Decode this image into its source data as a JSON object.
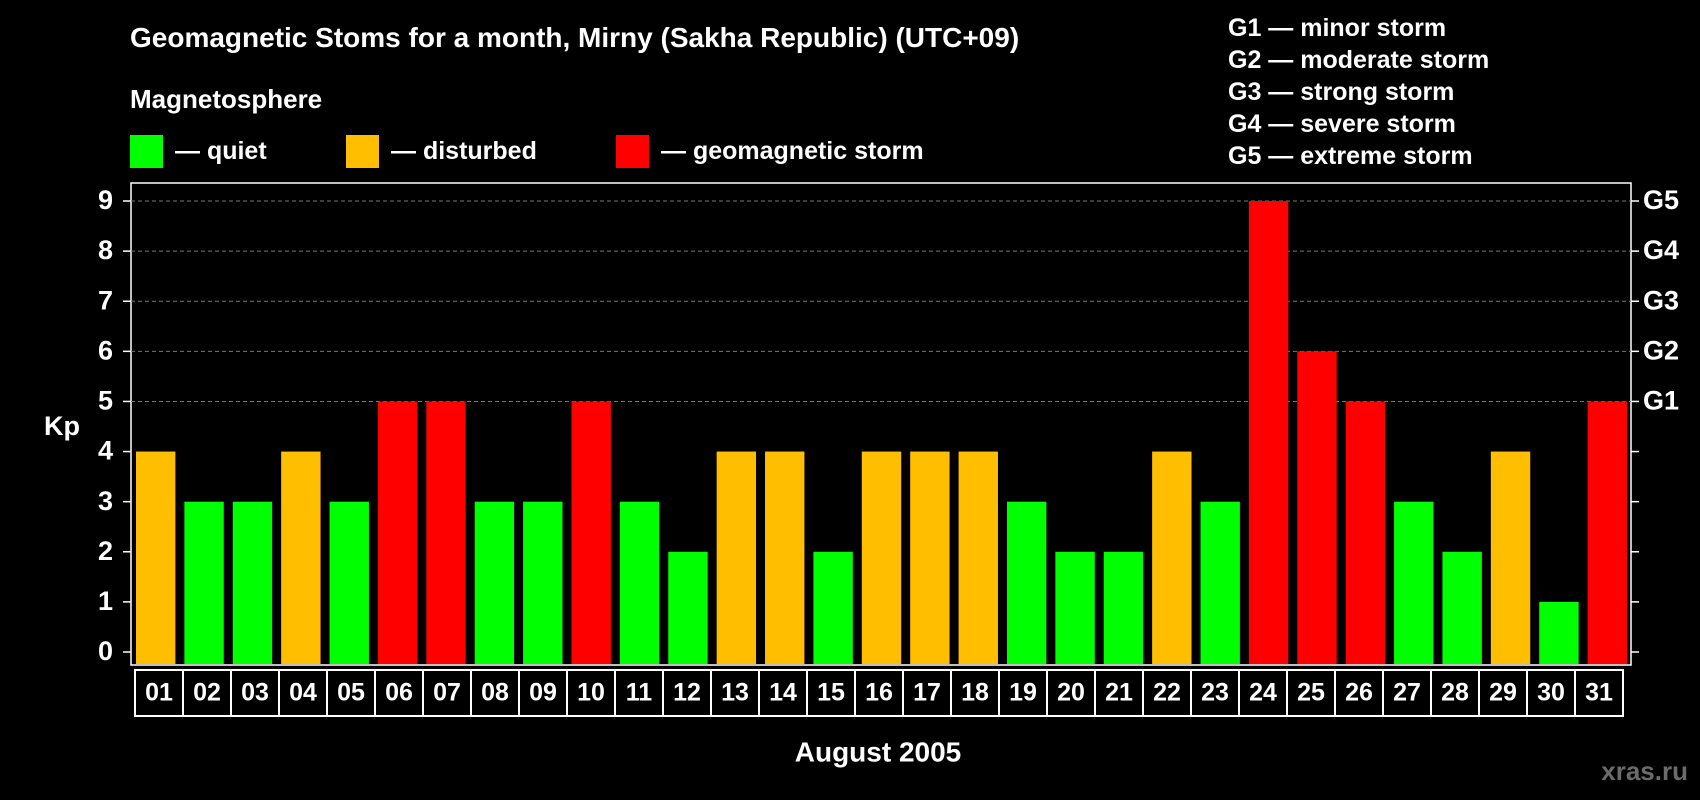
{
  "title": "Geomagnetic Stoms for a month, Mirny (Sakha Republic) (UTC+09)",
  "magnetosphere_label": "Magnetosphere",
  "legend": [
    {
      "label": "— quiet",
      "color": "#00ff00"
    },
    {
      "label": "— disturbed",
      "color": "#ffbf00"
    },
    {
      "label": "— geomagnetic storm",
      "color": "#ff0000"
    }
  ],
  "storm_scale": [
    {
      "label": "G1 — minor storm"
    },
    {
      "label": "G2 — moderate storm"
    },
    {
      "label": "G3 — strong storm"
    },
    {
      "label": "G4 — severe storm"
    },
    {
      "label": "G5 — extreme storm"
    }
  ],
  "watermark": "xras.ru",
  "chart_data": {
    "type": "bar",
    "title": "Geomagnetic Stoms for a month, Mirny (Sakha Republic) (UTC+09)",
    "xlabel": "August 2005",
    "ylabel": "Kp",
    "ylim": [
      0,
      9
    ],
    "yticks": [
      0,
      1,
      2,
      3,
      4,
      5,
      6,
      7,
      8,
      9
    ],
    "right_axis_labels": [
      {
        "kp": 5,
        "label": "G1"
      },
      {
        "kp": 6,
        "label": "G2"
      },
      {
        "kp": 7,
        "label": "G3"
      },
      {
        "kp": 8,
        "label": "G4"
      },
      {
        "kp": 9,
        "label": "G5"
      }
    ],
    "categories": [
      "01",
      "02",
      "03",
      "04",
      "05",
      "06",
      "07",
      "08",
      "09",
      "10",
      "11",
      "12",
      "13",
      "14",
      "15",
      "16",
      "17",
      "18",
      "19",
      "20",
      "21",
      "22",
      "23",
      "24",
      "25",
      "26",
      "27",
      "28",
      "29",
      "30",
      "31"
    ],
    "values": [
      4,
      3,
      3,
      4,
      3,
      5,
      5,
      3,
      3,
      5,
      3,
      2,
      4,
      4,
      2,
      4,
      4,
      4,
      3,
      2,
      2,
      4,
      3,
      9,
      6,
      5,
      3,
      2,
      4,
      1,
      5
    ],
    "colors": {
      "quiet": "#00ff00",
      "disturbed": "#ffbf00",
      "storm": "#ff0000"
    },
    "thresholds": {
      "disturbed_at": 4,
      "storm_at": 5
    },
    "grid": "dashed horizontal at Kp 5-9"
  }
}
